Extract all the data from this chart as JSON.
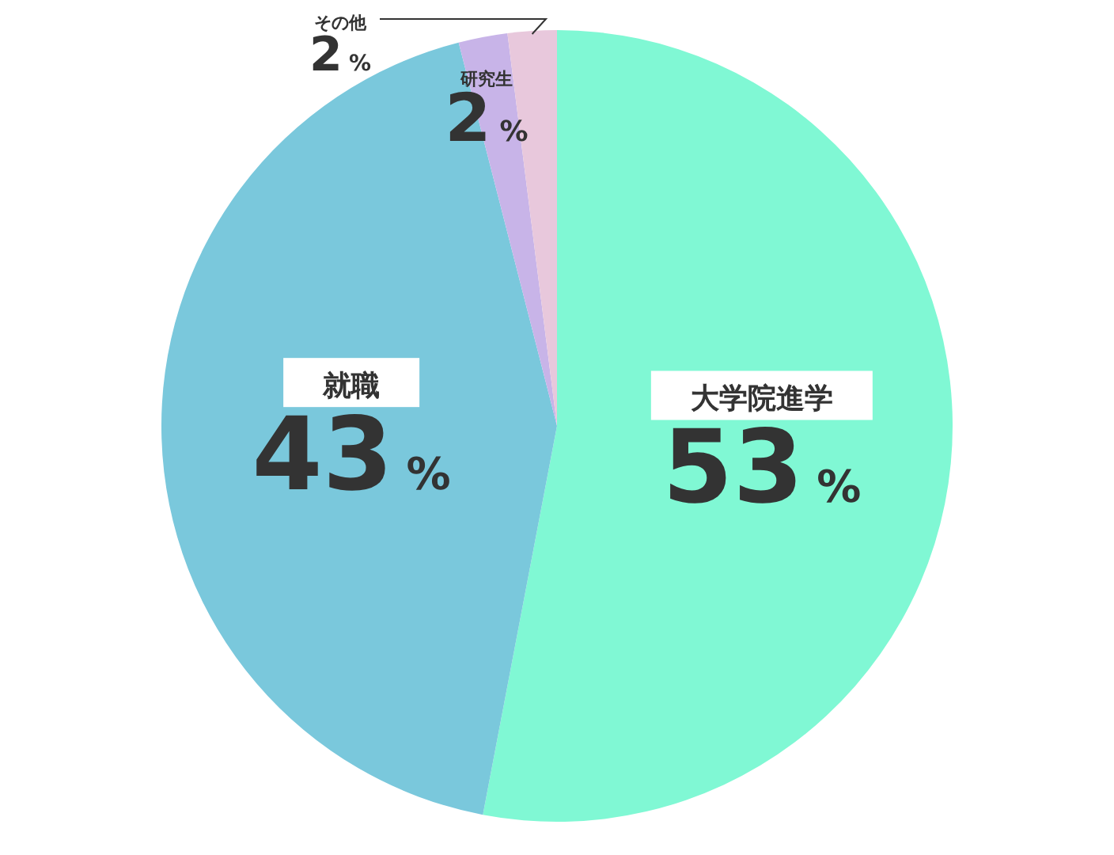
{
  "chart_data": {
    "type": "pie",
    "categories": [
      "大学院進学",
      "就職",
      "研究生",
      "その他"
    ],
    "values": [
      53,
      43,
      2,
      2
    ],
    "colors": [
      "#80f8d4",
      "#7ac8dc",
      "#c8b4e8",
      "#e8c8dc"
    ],
    "value_labels": [
      "53%",
      "43%",
      "2%",
      "2%"
    ]
  }
}
